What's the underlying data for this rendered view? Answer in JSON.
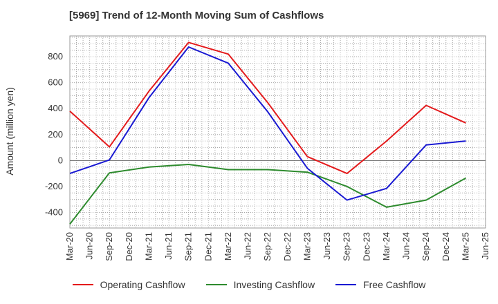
{
  "chart_data": {
    "type": "line",
    "title": "[5969]  Trend of 12-Month Moving Sum of Cashflows",
    "xlabel": "",
    "ylabel": "Amount (million yen)",
    "x_ticks": [
      "Mar-20",
      "Jun-20",
      "Sep-20",
      "Dec-20",
      "Mar-21",
      "Jun-21",
      "Sep-21",
      "Dec-21",
      "Mar-22",
      "Jun-22",
      "Sep-22",
      "Dec-22",
      "Mar-23",
      "Jun-23",
      "Sep-23",
      "Dec-23",
      "Mar-24",
      "Jun-24",
      "Sep-24",
      "Dec-24",
      "Mar-25",
      "Jun-25"
    ],
    "ylim": [
      -520,
      960
    ],
    "y_ticks": [
      -400,
      -200,
      0,
      200,
      400,
      600,
      800
    ],
    "grid": true,
    "legend_position": "bottom",
    "series": [
      {
        "name": "Operating Cashflow",
        "color": "#e41a1c",
        "x": [
          "Mar-20",
          "Sep-20",
          "Mar-21",
          "Sep-21",
          "Mar-22",
          "Sep-22",
          "Mar-23",
          "Sep-23",
          "Mar-24",
          "Sep-24",
          "Mar-25"
        ],
        "values": [
          380,
          105,
          535,
          910,
          820,
          445,
          30,
          -100,
          150,
          425,
          290
        ]
      },
      {
        "name": "Investing Cashflow",
        "color": "#2e8b2e",
        "x": [
          "Mar-20",
          "Sep-20",
          "Mar-21",
          "Sep-21",
          "Mar-22",
          "Sep-22",
          "Mar-23",
          "Sep-23",
          "Mar-24",
          "Sep-24",
          "Mar-25"
        ],
        "values": [
          -490,
          -95,
          -50,
          -30,
          -70,
          -70,
          -90,
          -200,
          -360,
          -305,
          -135
        ]
      },
      {
        "name": "Free Cashflow",
        "color": "#1919d2",
        "x": [
          "Mar-20",
          "Sep-20",
          "Mar-21",
          "Sep-21",
          "Mar-22",
          "Sep-22",
          "Mar-23",
          "Sep-23",
          "Mar-24",
          "Sep-24",
          "Mar-25"
        ],
        "values": [
          -100,
          5,
          485,
          875,
          750,
          375,
          -60,
          -305,
          -215,
          120,
          150
        ]
      }
    ]
  }
}
